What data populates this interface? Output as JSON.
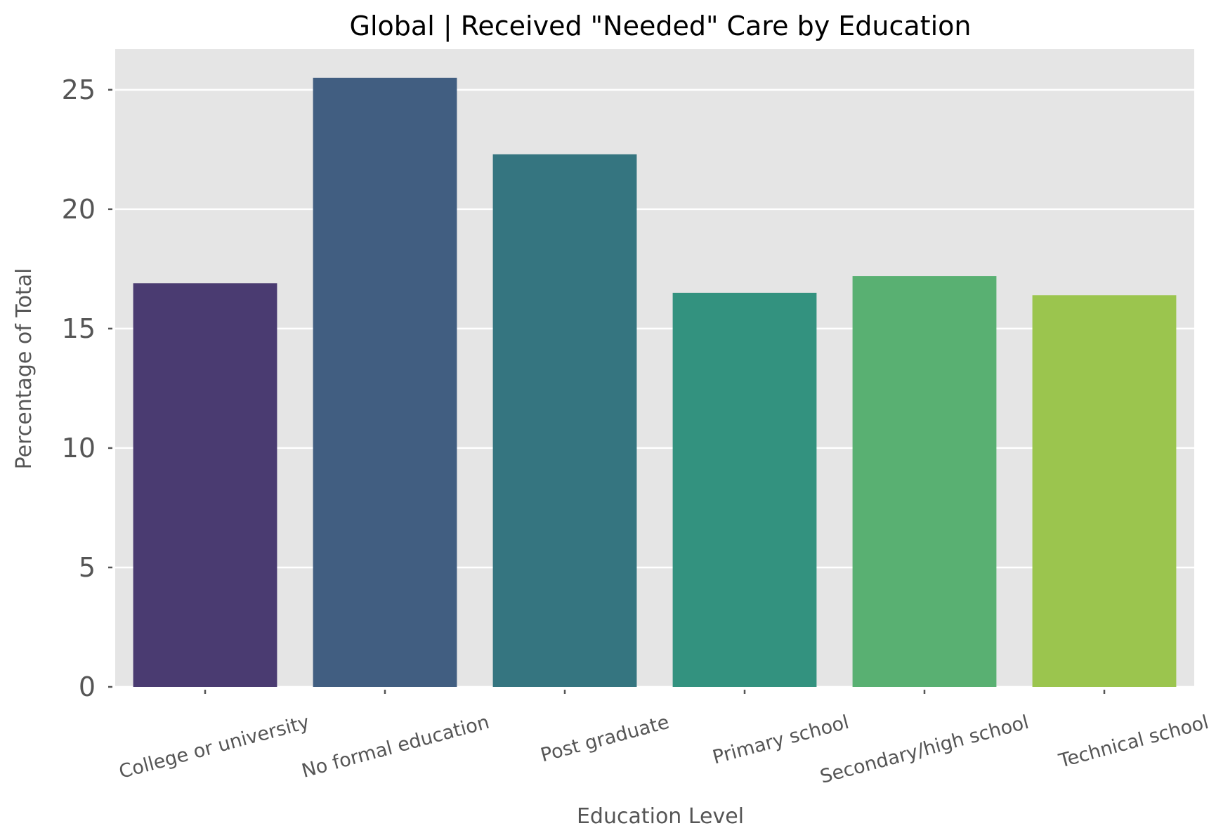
{
  "chart_data": {
    "type": "bar",
    "title": "Global | Received \"Needed\" Care by Education",
    "xlabel": "Education Level",
    "ylabel": "Percentage of Total",
    "categories": [
      "College or university",
      "No formal education",
      "Post graduate",
      "Primary school",
      "Secondary/high school",
      "Technical school"
    ],
    "values": [
      16.9,
      25.5,
      22.3,
      16.5,
      17.2,
      16.4
    ],
    "colors": [
      "#4a3b71",
      "#415e81",
      "#357580",
      "#33927f",
      "#59b072",
      "#9bc54e"
    ],
    "ylim": [
      0,
      26.7
    ],
    "yticks": [
      0,
      5,
      10,
      15,
      20,
      25
    ],
    "grid": true,
    "background": "#e5e5e5",
    "grid_color": "#ffffff"
  }
}
